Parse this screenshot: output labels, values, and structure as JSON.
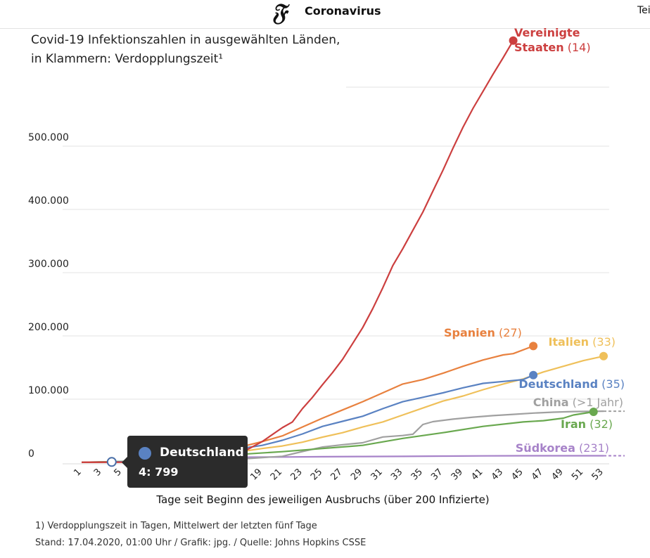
{
  "header": {
    "section": "Coronavirus",
    "share_label": "Tei"
  },
  "colors": {
    "usa": "#cc3f3f",
    "spain": "#e8813f",
    "italy": "#efc05a",
    "germany": "#5a82c2",
    "china": "#a0a0a0",
    "iran": "#69a84f",
    "korea": "#a783c9"
  },
  "tooltip": {
    "country": "Deutschland",
    "value": "4: 799"
  },
  "footnotes": {
    "note1": "1) Verdopplungszeit in Tagen, Mittelwert der letzten fünf Tage",
    "note2": "Stand: 17.04.2020, 01:00 Uhr / Grafik: jpg. / Quelle: Johns Hopkins CSSE"
  },
  "chart_data": {
    "type": "line",
    "title": "Covid-19 Infektionszahlen in ausgewählten Länden,",
    "subtitle": "in Klammern: Verdopplungszeit¹",
    "xlabel": "Tage seit Beginn des jeweiligen Ausbruchs (über 200 Infizierte)",
    "ylabel": "",
    "xlim": [
      1,
      53
    ],
    "ylim": [
      0,
      600000
    ],
    "grid": true,
    "y_ticks": [
      {
        "value": 0,
        "label": "0"
      },
      {
        "value": 100000,
        "label": "100.000"
      },
      {
        "value": 200000,
        "label": "200.000"
      },
      {
        "value": 300000,
        "label": "300.000"
      },
      {
        "value": 400000,
        "label": "400.000"
      },
      {
        "value": 500000,
        "label": "500.000"
      }
    ],
    "x_ticks": [
      1,
      3,
      5,
      7,
      9,
      11,
      13,
      15,
      17,
      19,
      21,
      23,
      25,
      27,
      29,
      31,
      33,
      35,
      37,
      39,
      41,
      43,
      45,
      47,
      49,
      51,
      53
    ],
    "series": [
      {
        "key": "usa",
        "name": "Vereinigte Staaten",
        "name_line1": "Vereinigte",
        "name_line2": "Staaten",
        "doubling": "(14)",
        "points": [
          [
            1,
            200
          ],
          [
            5,
            400
          ],
          [
            7,
            900
          ],
          [
            9,
            1600
          ],
          [
            11,
            3000
          ],
          [
            13,
            5500
          ],
          [
            15,
            9500
          ],
          [
            17,
            16000
          ],
          [
            19,
            33000
          ],
          [
            21,
            55000
          ],
          [
            22,
            64000
          ],
          [
            23,
            85000
          ],
          [
            24,
            103000
          ],
          [
            25,
            123000
          ],
          [
            26,
            142000
          ],
          [
            27,
            163000
          ],
          [
            28,
            188000
          ],
          [
            29,
            213000
          ],
          [
            30,
            243000
          ],
          [
            31,
            276000
          ],
          [
            32,
            311000
          ],
          [
            33,
            338000
          ],
          [
            34,
            367000
          ],
          [
            35,
            396000
          ],
          [
            36,
            429000
          ],
          [
            37,
            462000
          ],
          [
            38,
            497000
          ],
          [
            39,
            530000
          ],
          [
            40,
            560000
          ],
          [
            41,
            587000
          ],
          [
            42,
            614000
          ],
          [
            43,
            640000
          ],
          [
            44,
            667000
          ]
        ]
      },
      {
        "key": "spain",
        "name": "Spanien",
        "doubling": "(27)",
        "points": [
          [
            1,
            200
          ],
          [
            5,
            500
          ],
          [
            7,
            1600
          ],
          [
            9,
            4000
          ],
          [
            11,
            9000
          ],
          [
            13,
            14000
          ],
          [
            15,
            20000
          ],
          [
            17,
            25000
          ],
          [
            19,
            33000
          ],
          [
            21,
            42000
          ],
          [
            23,
            56000
          ],
          [
            25,
            70000
          ],
          [
            27,
            83000
          ],
          [
            29,
            96000
          ],
          [
            31,
            110000
          ],
          [
            33,
            124000
          ],
          [
            35,
            131000
          ],
          [
            37,
            141000
          ],
          [
            39,
            152000
          ],
          [
            41,
            162000
          ],
          [
            43,
            170000
          ],
          [
            44,
            172000
          ],
          [
            46,
            184000
          ]
        ]
      },
      {
        "key": "italy",
        "name": "Italien",
        "doubling": "(33)",
        "points": [
          [
            1,
            200
          ],
          [
            5,
            1000
          ],
          [
            7,
            2500
          ],
          [
            9,
            4600
          ],
          [
            11,
            7300
          ],
          [
            13,
            10100
          ],
          [
            15,
            15000
          ],
          [
            17,
            17500
          ],
          [
            19,
            22000
          ],
          [
            21,
            26000
          ],
          [
            23,
            32000
          ],
          [
            25,
            40000
          ],
          [
            27,
            47000
          ],
          [
            29,
            56000
          ],
          [
            31,
            64000
          ],
          [
            33,
            75000
          ],
          [
            35,
            86000
          ],
          [
            37,
            97000
          ],
          [
            39,
            105000
          ],
          [
            41,
            115000
          ],
          [
            43,
            124000
          ],
          [
            45,
            132000
          ],
          [
            47,
            143000
          ],
          [
            49,
            152000
          ],
          [
            51,
            161000
          ],
          [
            53,
            168000
          ]
        ]
      },
      {
        "key": "germany",
        "name": "Deutschland",
        "doubling": "(35)",
        "points": [
          [
            1,
            200
          ],
          [
            4,
            799
          ],
          [
            5,
            1100
          ],
          [
            7,
            2000
          ],
          [
            9,
            4800
          ],
          [
            11,
            7300
          ],
          [
            13,
            12300
          ],
          [
            15,
            19800
          ],
          [
            17,
            22300
          ],
          [
            19,
            27000
          ],
          [
            21,
            35000
          ],
          [
            23,
            45000
          ],
          [
            25,
            57000
          ],
          [
            27,
            65000
          ],
          [
            29,
            73000
          ],
          [
            31,
            85000
          ],
          [
            33,
            96000
          ],
          [
            35,
            103000
          ],
          [
            37,
            110000
          ],
          [
            39,
            118000
          ],
          [
            41,
            125000
          ],
          [
            43,
            128000
          ],
          [
            45,
            131000
          ],
          [
            46,
            138000
          ]
        ]
      },
      {
        "key": "china",
        "name": "China",
        "doubling": "(>1 Jahr)",
        "points": [
          [
            1,
            200
          ],
          [
            9,
            1200
          ],
          [
            13,
            3000
          ],
          [
            17,
            5500
          ],
          [
            19,
            7700
          ],
          [
            21,
            9700
          ],
          [
            23,
            17200
          ],
          [
            25,
            24300
          ],
          [
            27,
            28000
          ],
          [
            29,
            31100
          ],
          [
            31,
            40200
          ],
          [
            33,
            42600
          ],
          [
            34,
            44600
          ],
          [
            35,
            60000
          ],
          [
            36,
            64500
          ],
          [
            38,
            68500
          ],
          [
            40,
            71500
          ],
          [
            42,
            74000
          ],
          [
            44,
            76000
          ],
          [
            46,
            78000
          ],
          [
            48,
            79500
          ],
          [
            50,
            80400
          ],
          [
            53,
            81000
          ]
        ]
      },
      {
        "key": "iran",
        "name": "Iran",
        "doubling": "(32)",
        "points": [
          [
            1,
            200
          ],
          [
            5,
            1500
          ],
          [
            9,
            4700
          ],
          [
            13,
            9000
          ],
          [
            17,
            13000
          ],
          [
            21,
            17000
          ],
          [
            25,
            22000
          ],
          [
            29,
            27000
          ],
          [
            33,
            38000
          ],
          [
            37,
            47000
          ],
          [
            41,
            57000
          ],
          [
            45,
            64000
          ],
          [
            47,
            66000
          ],
          [
            49,
            70000
          ],
          [
            50,
            75000
          ],
          [
            52,
            80000
          ]
        ]
      },
      {
        "key": "korea",
        "name": "Südkorea",
        "doubling": "(231)",
        "points": [
          [
            1,
            200
          ],
          [
            5,
            1200
          ],
          [
            9,
            4300
          ],
          [
            13,
            7400
          ],
          [
            17,
            8200
          ],
          [
            21,
            8600
          ],
          [
            25,
            9000
          ],
          [
            29,
            9300
          ],
          [
            33,
            9600
          ],
          [
            37,
            10000
          ],
          [
            41,
            10300
          ],
          [
            45,
            10500
          ],
          [
            49,
            10600
          ],
          [
            53,
            10600
          ]
        ]
      }
    ]
  }
}
